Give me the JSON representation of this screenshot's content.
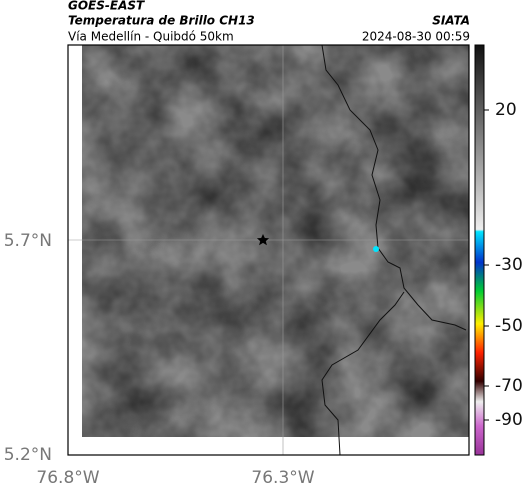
{
  "header": {
    "source": "GOES-EAST",
    "title": "Temperatura de Brillo CH13",
    "org": "SIATA",
    "region": "Vía Medellín - Quibdó 50km",
    "timestamp": "2024-08-30 00:59"
  },
  "map": {
    "lat_labels": [
      "5.7°N",
      "5.2°N"
    ],
    "lon_labels": [
      "76.8°W",
      "76.3°W"
    ]
  },
  "colorbar": {
    "labels": [
      "20",
      "-30",
      "-50",
      "-70",
      "-90"
    ]
  }
}
